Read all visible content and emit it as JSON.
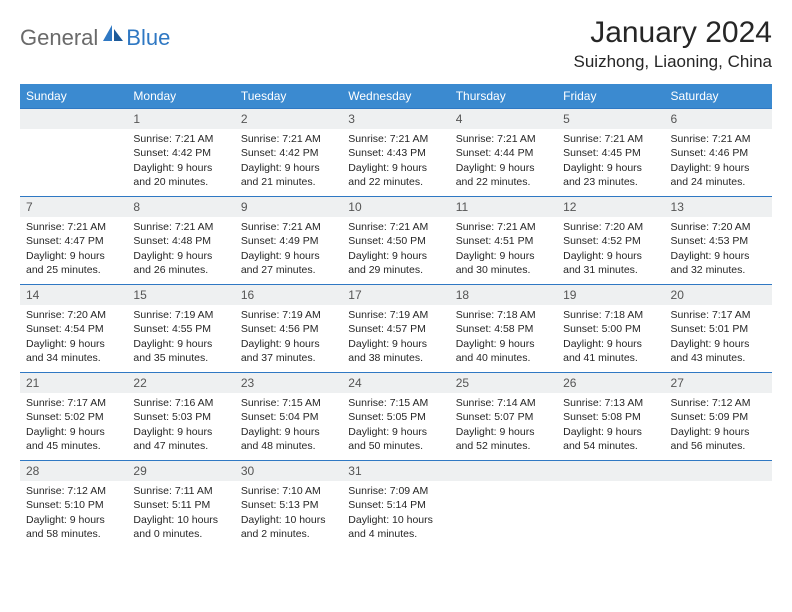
{
  "logo": {
    "text1": "General",
    "text2": "Blue"
  },
  "title": "January 2024",
  "location": "Suizhong, Liaoning, China",
  "colors": {
    "header_bg": "#3b8ad0",
    "daynum_bg": "#eef0f1",
    "border": "#2f78c3",
    "logo_blue": "#2f78c3",
    "logo_gray": "#6a6a6a"
  },
  "day_headers": [
    "Sunday",
    "Monday",
    "Tuesday",
    "Wednesday",
    "Thursday",
    "Friday",
    "Saturday"
  ],
  "weeks": [
    [
      {
        "num": "",
        "lines": []
      },
      {
        "num": "1",
        "lines": [
          "Sunrise: 7:21 AM",
          "Sunset: 4:42 PM",
          "Daylight: 9 hours and 20 minutes."
        ]
      },
      {
        "num": "2",
        "lines": [
          "Sunrise: 7:21 AM",
          "Sunset: 4:42 PM",
          "Daylight: 9 hours and 21 minutes."
        ]
      },
      {
        "num": "3",
        "lines": [
          "Sunrise: 7:21 AM",
          "Sunset: 4:43 PM",
          "Daylight: 9 hours and 22 minutes."
        ]
      },
      {
        "num": "4",
        "lines": [
          "Sunrise: 7:21 AM",
          "Sunset: 4:44 PM",
          "Daylight: 9 hours and 22 minutes."
        ]
      },
      {
        "num": "5",
        "lines": [
          "Sunrise: 7:21 AM",
          "Sunset: 4:45 PM",
          "Daylight: 9 hours and 23 minutes."
        ]
      },
      {
        "num": "6",
        "lines": [
          "Sunrise: 7:21 AM",
          "Sunset: 4:46 PM",
          "Daylight: 9 hours and 24 minutes."
        ]
      }
    ],
    [
      {
        "num": "7",
        "lines": [
          "Sunrise: 7:21 AM",
          "Sunset: 4:47 PM",
          "Daylight: 9 hours and 25 minutes."
        ]
      },
      {
        "num": "8",
        "lines": [
          "Sunrise: 7:21 AM",
          "Sunset: 4:48 PM",
          "Daylight: 9 hours and 26 minutes."
        ]
      },
      {
        "num": "9",
        "lines": [
          "Sunrise: 7:21 AM",
          "Sunset: 4:49 PM",
          "Daylight: 9 hours and 27 minutes."
        ]
      },
      {
        "num": "10",
        "lines": [
          "Sunrise: 7:21 AM",
          "Sunset: 4:50 PM",
          "Daylight: 9 hours and 29 minutes."
        ]
      },
      {
        "num": "11",
        "lines": [
          "Sunrise: 7:21 AM",
          "Sunset: 4:51 PM",
          "Daylight: 9 hours and 30 minutes."
        ]
      },
      {
        "num": "12",
        "lines": [
          "Sunrise: 7:20 AM",
          "Sunset: 4:52 PM",
          "Daylight: 9 hours and 31 minutes."
        ]
      },
      {
        "num": "13",
        "lines": [
          "Sunrise: 7:20 AM",
          "Sunset: 4:53 PM",
          "Daylight: 9 hours and 32 minutes."
        ]
      }
    ],
    [
      {
        "num": "14",
        "lines": [
          "Sunrise: 7:20 AM",
          "Sunset: 4:54 PM",
          "Daylight: 9 hours and 34 minutes."
        ]
      },
      {
        "num": "15",
        "lines": [
          "Sunrise: 7:19 AM",
          "Sunset: 4:55 PM",
          "Daylight: 9 hours and 35 minutes."
        ]
      },
      {
        "num": "16",
        "lines": [
          "Sunrise: 7:19 AM",
          "Sunset: 4:56 PM",
          "Daylight: 9 hours and 37 minutes."
        ]
      },
      {
        "num": "17",
        "lines": [
          "Sunrise: 7:19 AM",
          "Sunset: 4:57 PM",
          "Daylight: 9 hours and 38 minutes."
        ]
      },
      {
        "num": "18",
        "lines": [
          "Sunrise: 7:18 AM",
          "Sunset: 4:58 PM",
          "Daylight: 9 hours and 40 minutes."
        ]
      },
      {
        "num": "19",
        "lines": [
          "Sunrise: 7:18 AM",
          "Sunset: 5:00 PM",
          "Daylight: 9 hours and 41 minutes."
        ]
      },
      {
        "num": "20",
        "lines": [
          "Sunrise: 7:17 AM",
          "Sunset: 5:01 PM",
          "Daylight: 9 hours and 43 minutes."
        ]
      }
    ],
    [
      {
        "num": "21",
        "lines": [
          "Sunrise: 7:17 AM",
          "Sunset: 5:02 PM",
          "Daylight: 9 hours and 45 minutes."
        ]
      },
      {
        "num": "22",
        "lines": [
          "Sunrise: 7:16 AM",
          "Sunset: 5:03 PM",
          "Daylight: 9 hours and 47 minutes."
        ]
      },
      {
        "num": "23",
        "lines": [
          "Sunrise: 7:15 AM",
          "Sunset: 5:04 PM",
          "Daylight: 9 hours and 48 minutes."
        ]
      },
      {
        "num": "24",
        "lines": [
          "Sunrise: 7:15 AM",
          "Sunset: 5:05 PM",
          "Daylight: 9 hours and 50 minutes."
        ]
      },
      {
        "num": "25",
        "lines": [
          "Sunrise: 7:14 AM",
          "Sunset: 5:07 PM",
          "Daylight: 9 hours and 52 minutes."
        ]
      },
      {
        "num": "26",
        "lines": [
          "Sunrise: 7:13 AM",
          "Sunset: 5:08 PM",
          "Daylight: 9 hours and 54 minutes."
        ]
      },
      {
        "num": "27",
        "lines": [
          "Sunrise: 7:12 AM",
          "Sunset: 5:09 PM",
          "Daylight: 9 hours and 56 minutes."
        ]
      }
    ],
    [
      {
        "num": "28",
        "lines": [
          "Sunrise: 7:12 AM",
          "Sunset: 5:10 PM",
          "Daylight: 9 hours and 58 minutes."
        ]
      },
      {
        "num": "29",
        "lines": [
          "Sunrise: 7:11 AM",
          "Sunset: 5:11 PM",
          "Daylight: 10 hours and 0 minutes."
        ]
      },
      {
        "num": "30",
        "lines": [
          "Sunrise: 7:10 AM",
          "Sunset: 5:13 PM",
          "Daylight: 10 hours and 2 minutes."
        ]
      },
      {
        "num": "31",
        "lines": [
          "Sunrise: 7:09 AM",
          "Sunset: 5:14 PM",
          "Daylight: 10 hours and 4 minutes."
        ]
      },
      {
        "num": "",
        "lines": []
      },
      {
        "num": "",
        "lines": []
      },
      {
        "num": "",
        "lines": []
      }
    ]
  ]
}
